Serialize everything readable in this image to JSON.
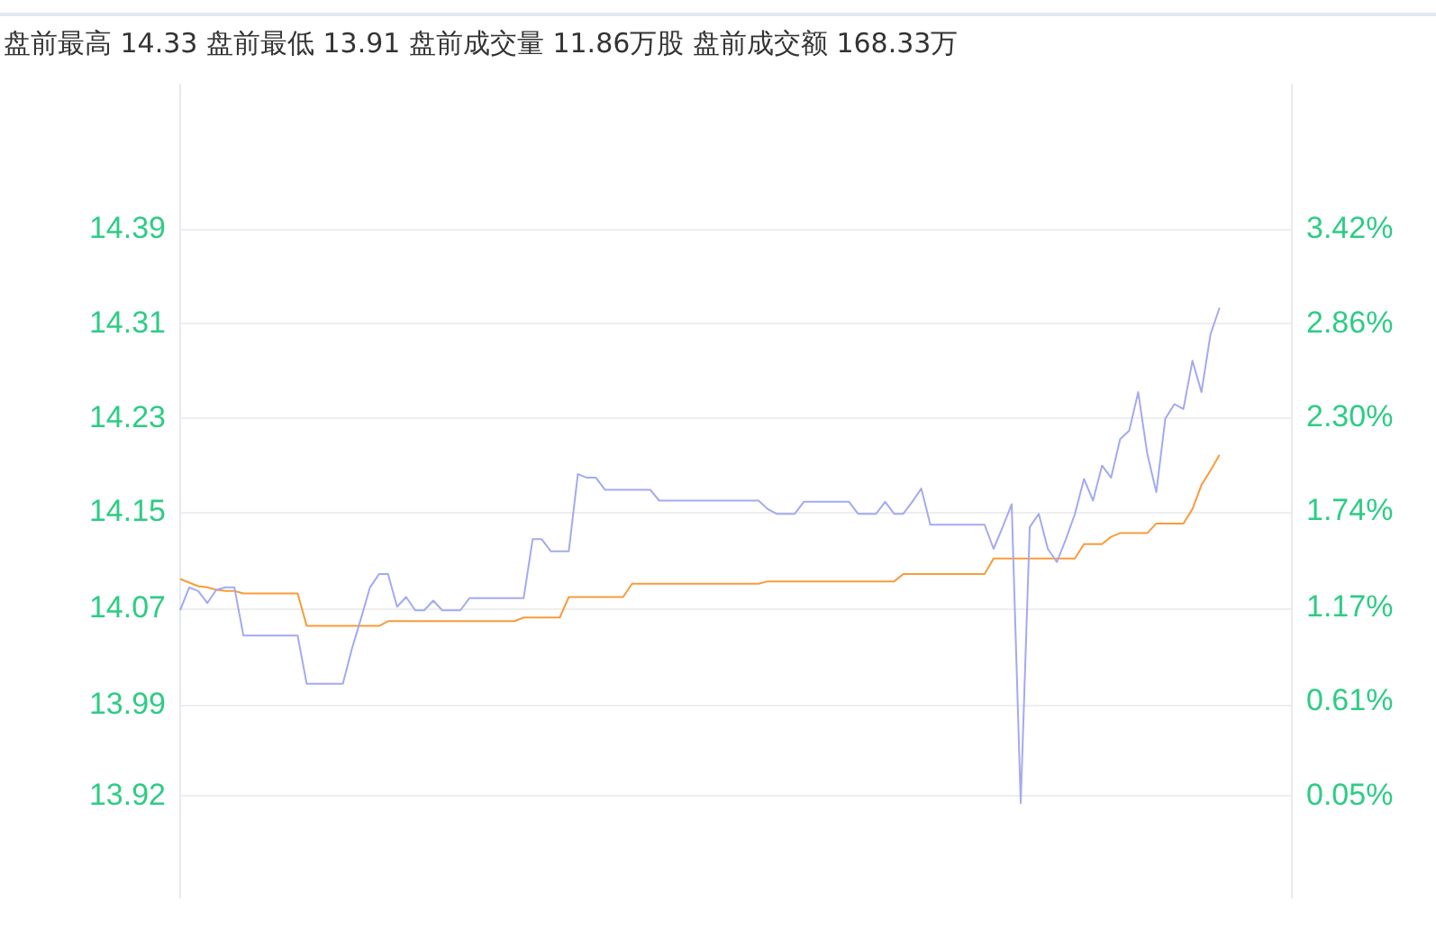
{
  "chart_data": {
    "type": "line",
    "title": "盘前最高 14.33 盘前最低 13.91 盘前成交量 11.86万股 盘前成交额 168.33万",
    "categories": [
      null,
      null,
      null,
      null,
      null,
      null,
      null,
      null,
      null,
      null,
      null,
      null,
      null,
      null,
      null,
      null,
      null,
      null,
      null,
      null,
      null,
      null,
      null,
      null,
      null,
      null,
      null,
      null,
      null,
      null,
      null,
      null,
      null,
      null,
      null,
      null,
      null,
      null,
      null,
      null,
      null,
      null,
      null,
      null,
      null,
      null,
      null,
      null,
      null,
      null,
      null,
      null,
      null,
      null,
      null,
      null,
      null,
      null,
      null,
      null,
      null,
      null,
      null,
      null,
      null,
      null,
      null,
      null,
      null,
      null,
      null,
      null,
      null,
      null,
      null,
      null,
      null,
      null,
      null,
      null,
      null,
      null,
      null,
      null,
      null,
      null,
      null,
      null,
      null,
      null,
      null,
      null,
      null,
      null,
      null,
      null,
      null,
      null,
      null,
      null,
      null,
      null,
      null,
      null,
      null,
      null,
      null,
      null,
      null,
      null,
      null,
      null,
      null,
      null,
      null,
      null,
      null,
      null,
      null,
      null,
      null,
      null,
      null,
      null
    ],
    "series": [
      {
        "color": "#a3aaf2",
        "values": [
          14.074,
          14.093,
          14.09,
          14.08,
          14.091,
          14.093,
          14.093,
          14.053,
          14.053,
          14.053,
          14.053,
          14.053,
          14.053,
          14.053,
          14.013,
          14.013,
          14.013,
          14.013,
          14.013,
          14.042,
          14.067,
          14.093,
          14.104,
          14.104,
          14.077,
          14.085,
          14.074,
          14.074,
          14.082,
          14.074,
          14.074,
          14.074,
          14.084,
          14.084,
          14.084,
          14.084,
          14.084,
          14.084,
          14.084,
          14.133,
          14.133,
          14.123,
          14.123,
          14.123,
          14.187,
          14.184,
          14.184,
          14.174,
          14.174,
          14.174,
          14.174,
          14.174,
          14.174,
          14.165,
          14.165,
          14.165,
          14.165,
          14.165,
          14.165,
          14.165,
          14.165,
          14.165,
          14.165,
          14.165,
          14.165,
          14.158,
          14.154,
          14.154,
          14.154,
          14.164,
          14.164,
          14.164,
          14.164,
          14.164,
          14.164,
          14.154,
          14.154,
          14.154,
          14.164,
          14.154,
          14.154,
          14.164,
          14.175,
          14.145,
          14.145,
          14.145,
          14.145,
          14.145,
          14.145,
          14.145,
          14.125,
          14.143,
          14.162,
          13.914,
          14.143,
          14.154,
          14.125,
          14.114,
          14.133,
          14.154,
          14.183,
          14.165,
          14.194,
          14.184,
          14.216,
          14.223,
          14.255,
          14.204,
          14.172,
          14.233,
          14.245,
          14.241,
          14.281,
          14.255,
          14.303,
          14.325,
          null,
          null,
          null,
          null,
          null,
          null,
          null,
          null
        ]
      },
      {
        "color": "#f99b3c",
        "values": [
          14.1,
          14.097,
          14.094,
          14.093,
          14.091,
          14.09,
          14.09,
          14.088,
          14.088,
          14.088,
          14.088,
          14.088,
          14.088,
          14.088,
          14.061,
          14.061,
          14.061,
          14.061,
          14.061,
          14.061,
          14.061,
          14.061,
          14.061,
          14.065,
          14.065,
          14.065,
          14.065,
          14.065,
          14.065,
          14.065,
          14.065,
          14.065,
          14.065,
          14.065,
          14.065,
          14.065,
          14.065,
          14.065,
          14.068,
          14.068,
          14.068,
          14.068,
          14.068,
          14.085,
          14.085,
          14.085,
          14.085,
          14.085,
          14.085,
          14.085,
          14.096,
          14.096,
          14.096,
          14.096,
          14.096,
          14.096,
          14.096,
          14.096,
          14.096,
          14.096,
          14.096,
          14.096,
          14.096,
          14.096,
          14.096,
          14.098,
          14.098,
          14.098,
          14.098,
          14.098,
          14.098,
          14.098,
          14.098,
          14.098,
          14.098,
          14.098,
          14.098,
          14.098,
          14.098,
          14.098,
          14.104,
          14.104,
          14.104,
          14.104,
          14.104,
          14.104,
          14.104,
          14.104,
          14.104,
          14.104,
          14.117,
          14.117,
          14.117,
          14.117,
          14.117,
          14.117,
          14.117,
          14.117,
          14.117,
          14.117,
          14.129,
          14.129,
          14.129,
          14.135,
          14.138,
          14.138,
          14.138,
          14.138,
          14.146,
          14.146,
          14.146,
          14.146,
          14.158,
          14.178,
          14.19,
          14.203,
          null,
          null,
          null,
          null,
          null,
          null,
          null,
          null
        ]
      }
    ],
    "ylim": [
      13.836,
      14.51
    ],
    "yticks": [
      {
        "value": 14.39,
        "label": "14.39"
      },
      {
        "value": 14.3117,
        "label": "14.31"
      },
      {
        "value": 14.2333,
        "label": "14.23"
      },
      {
        "value": 14.155,
        "label": "14.15"
      },
      {
        "value": 14.0749,
        "label": "14.07"
      },
      {
        "value": 13.9949,
        "label": "13.99"
      },
      {
        "value": 13.92,
        "label": "13.92"
      }
    ],
    "y2lim": [
      -0.553,
      4.283
    ],
    "y2ticks": [
      {
        "value": 3.42,
        "label": "3.42%"
      },
      {
        "value": 2.86,
        "label": "2.86%"
      },
      {
        "value": 2.3,
        "label": "2.30%"
      },
      {
        "value": 1.74,
        "label": "1.74%"
      },
      {
        "value": 1.17,
        "label": "1.17%"
      },
      {
        "value": 0.61,
        "label": "0.61%"
      },
      {
        "value": 0.05,
        "label": "0.05%"
      }
    ],
    "grid": "y",
    "legend": false,
    "marker": "none",
    "line_style": "solid"
  }
}
